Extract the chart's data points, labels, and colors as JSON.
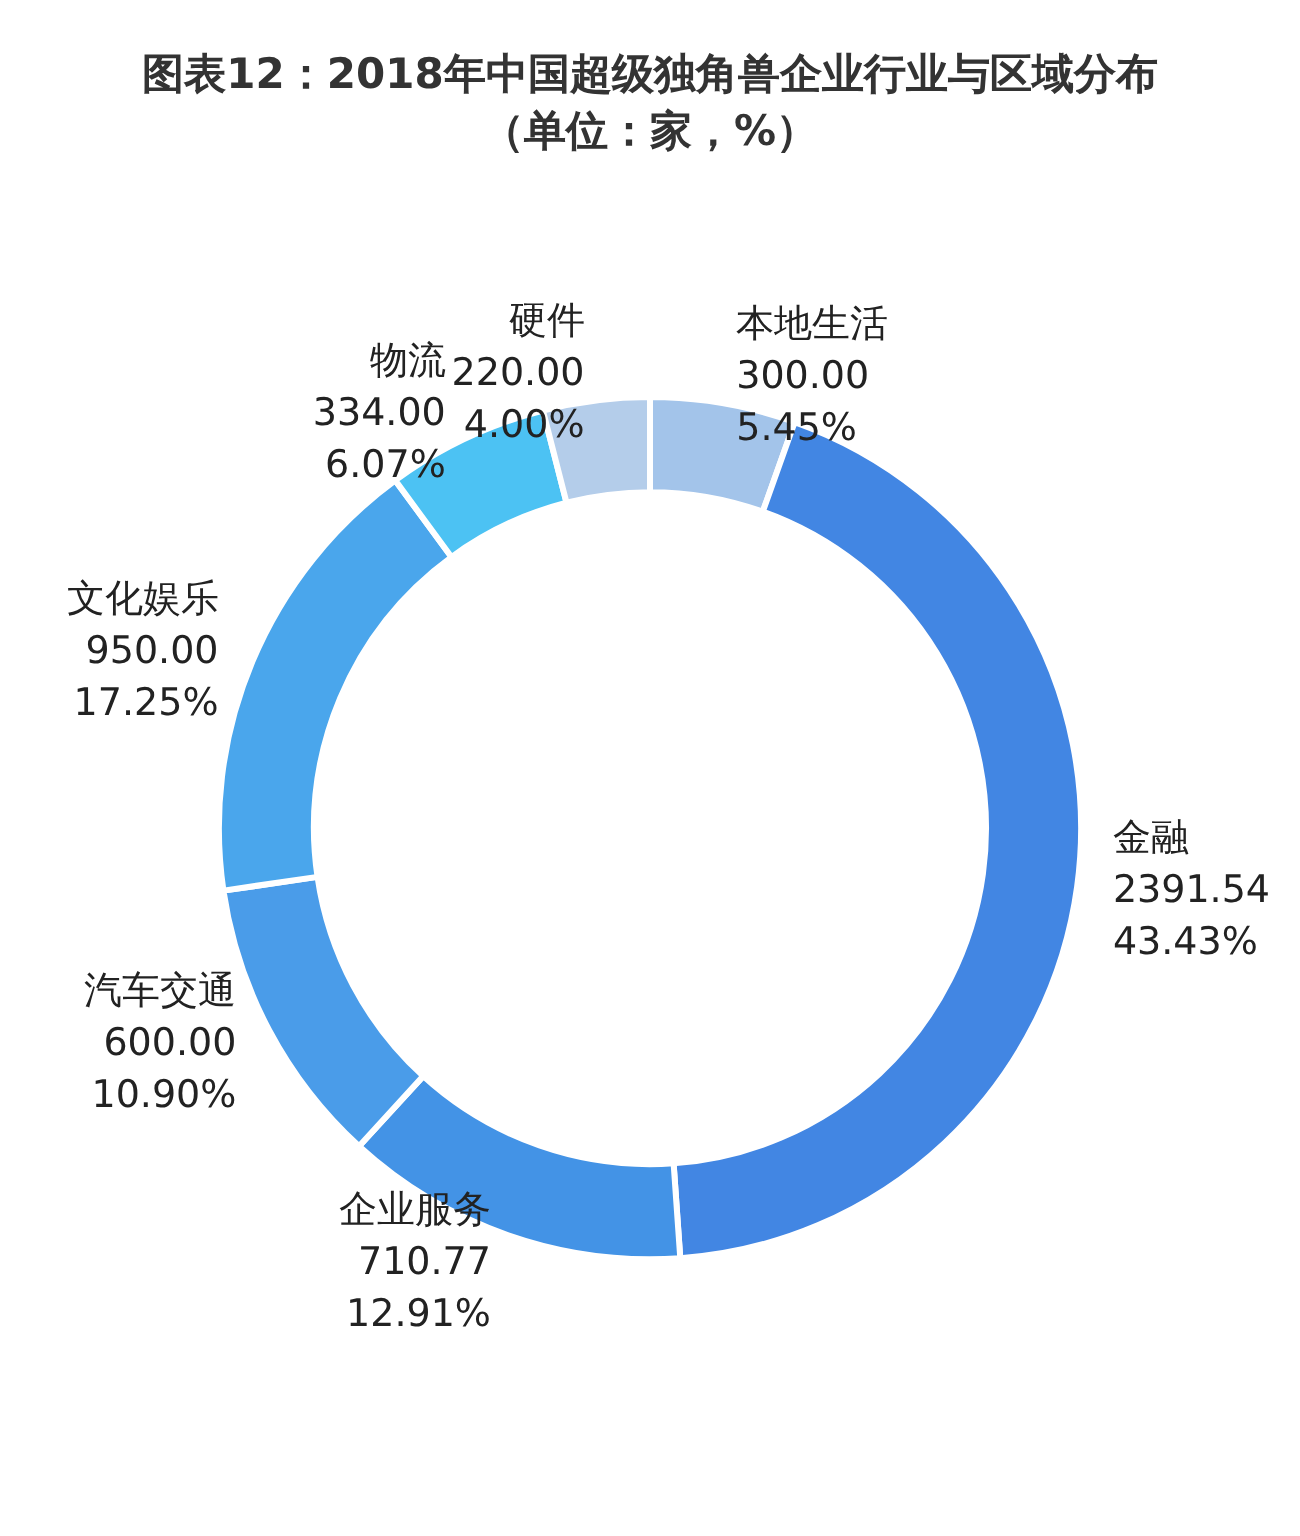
{
  "chart_data": {
    "type": "donut",
    "title": "图表12：2018年中国超级独角兽企业行业与区域分布",
    "subtitle": "（单位：家，%）",
    "categories": [
      "本地生活",
      "金融",
      "企业服务",
      "汽车交通",
      "文化娱乐",
      "物流",
      "硬件"
    ],
    "values": [
      300.0,
      2391.54,
      710.77,
      600.0,
      950.0,
      334.0,
      220.0
    ],
    "value_labels": [
      "300.00\n5.45%",
      "2391.54\n43.43%",
      "710.77\n12.91%",
      "600.00\n10.90%",
      "950.00\n17.25%",
      "334.00\n6.07%",
      "220.00\n4.00%"
    ],
    "colors": [
      "#a3c4ea",
      "#4286e3",
      "#4393e6",
      "#4a9ce9",
      "#4aa6ec",
      "#4cc2f3",
      "#b4cdea"
    ]
  }
}
